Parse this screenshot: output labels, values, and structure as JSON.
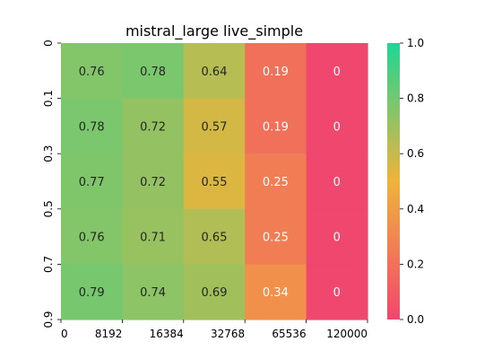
{
  "chart_data": {
    "type": "heatmap",
    "title": "mistral_large live_simple",
    "x_tick_labels": [
      "0",
      "8192",
      "16384",
      "32768",
      "65536",
      "120000"
    ],
    "y_tick_labels": [
      "0",
      "0.1",
      "0.3",
      "0.5",
      "0.7",
      "0.9"
    ],
    "values": [
      [
        0.76,
        0.78,
        0.64,
        0.19,
        0
      ],
      [
        0.78,
        0.72,
        0.57,
        0.19,
        0
      ],
      [
        0.77,
        0.72,
        0.55,
        0.25,
        0
      ],
      [
        0.76,
        0.71,
        0.65,
        0.25,
        0
      ],
      [
        0.79,
        0.74,
        0.69,
        0.34,
        0
      ]
    ],
    "colorbar": {
      "range": [
        0.0,
        1.0
      ],
      "tick_labels": [
        "0.0",
        "0.2",
        "0.4",
        "0.6",
        "0.8",
        "1.0"
      ],
      "colors": [
        "#f0476e",
        "#f0b339",
        "#1fd696"
      ]
    },
    "grid": false
  }
}
